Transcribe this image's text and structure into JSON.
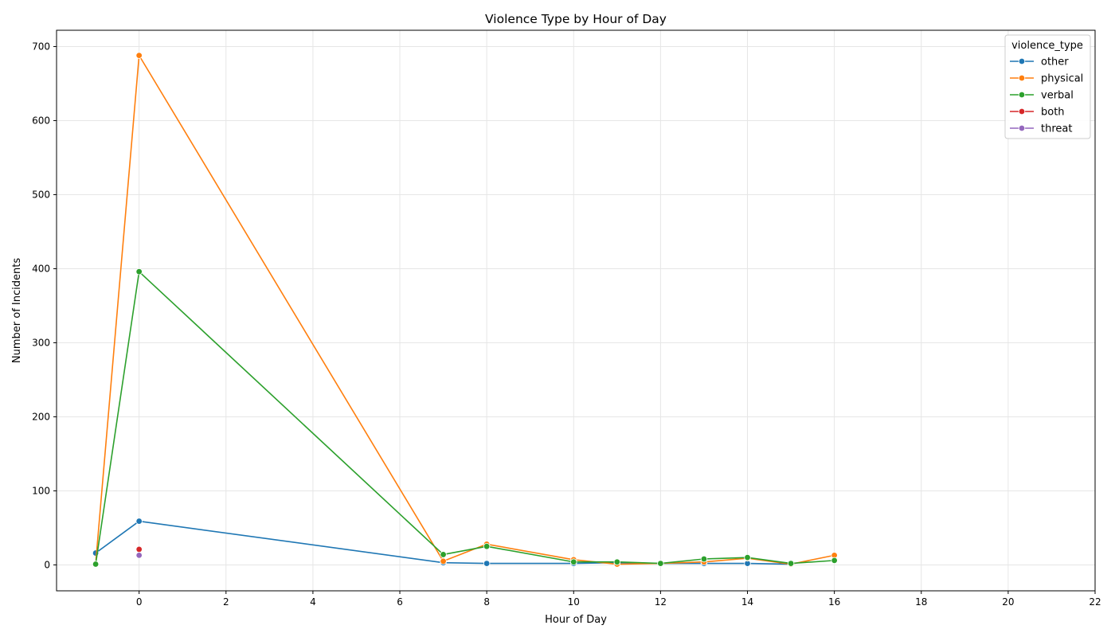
{
  "chart_data": {
    "type": "line",
    "title": "Violence Type by Hour of Day",
    "xlabel": "Hour of Day",
    "ylabel": "Number of Incidents",
    "xlim": [
      -1.9,
      22
    ],
    "ylim": [
      -35,
      722
    ],
    "xticks": [
      0,
      2,
      4,
      6,
      8,
      10,
      12,
      14,
      16,
      18,
      20,
      22
    ],
    "yticks": [
      0,
      100,
      200,
      300,
      400,
      500,
      600,
      700
    ],
    "grid": true,
    "legend_title": "violence_type",
    "legend_position": "top-right",
    "series": [
      {
        "name": "other",
        "color": "#1f77b4",
        "points": [
          [
            -1,
            16
          ],
          [
            0,
            59
          ],
          [
            7,
            3
          ],
          [
            8,
            2
          ],
          [
            10,
            2
          ],
          [
            11,
            3
          ],
          [
            12,
            2
          ],
          [
            13,
            2
          ],
          [
            14,
            2
          ],
          [
            15,
            1
          ]
        ]
      },
      {
        "name": "physical",
        "color": "#ff7f0e",
        "points": [
          [
            -1,
            2
          ],
          [
            0,
            688
          ],
          [
            7,
            5
          ],
          [
            8,
            28
          ],
          [
            10,
            7
          ],
          [
            11,
            1
          ],
          [
            12,
            2
          ],
          [
            13,
            4
          ],
          [
            14,
            9
          ],
          [
            15,
            1
          ],
          [
            16,
            13
          ]
        ]
      },
      {
        "name": "verbal",
        "color": "#2ca02c",
        "points": [
          [
            -1,
            1
          ],
          [
            0,
            396
          ],
          [
            7,
            14
          ],
          [
            8,
            25
          ],
          [
            10,
            4
          ],
          [
            11,
            4
          ],
          [
            12,
            2
          ],
          [
            13,
            8
          ],
          [
            14,
            10
          ],
          [
            15,
            2
          ],
          [
            16,
            6
          ]
        ]
      },
      {
        "name": "both",
        "color": "#d62728",
        "points": [
          [
            0,
            21
          ]
        ]
      },
      {
        "name": "threat",
        "color": "#9467bd",
        "points": [
          [
            0,
            13
          ]
        ]
      }
    ]
  }
}
